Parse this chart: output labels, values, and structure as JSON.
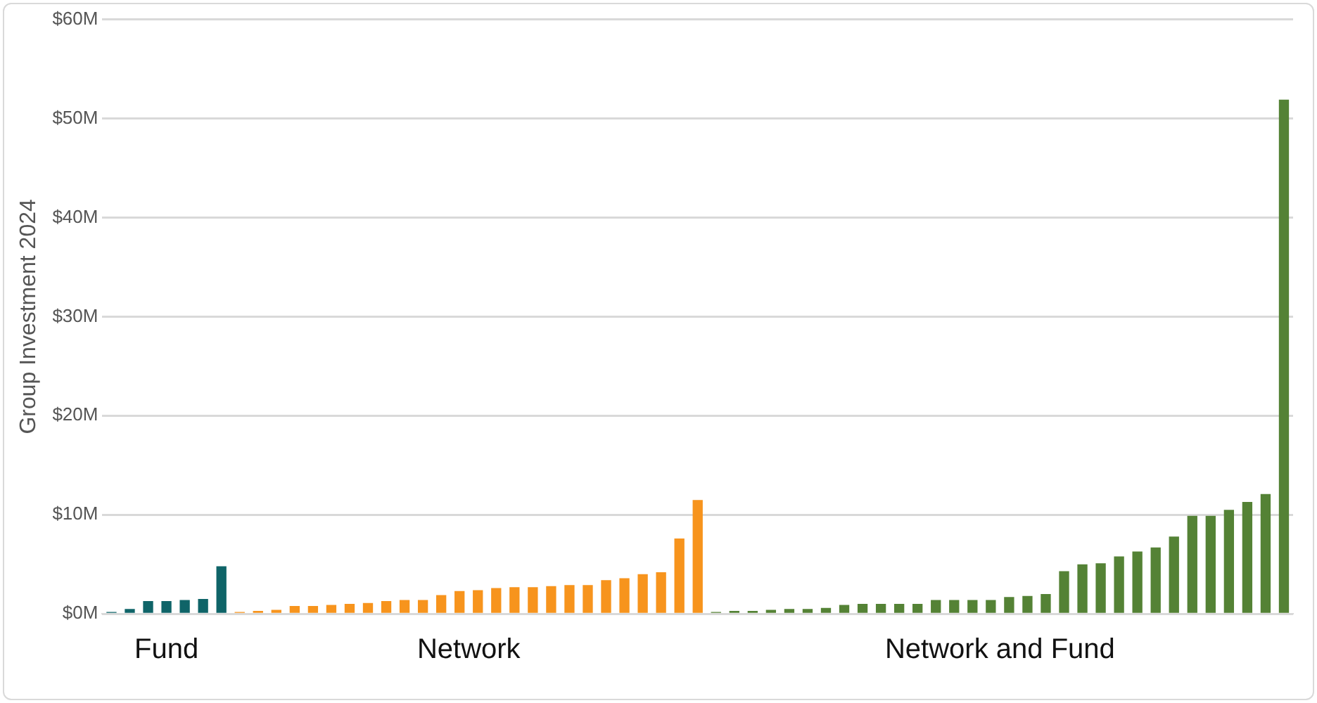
{
  "chart_data": {
    "type": "bar",
    "ylabel": "Group Investment 2024",
    "categories": [
      null,
      null,
      null,
      null,
      null,
      null,
      null,
      null,
      null,
      null,
      null,
      null,
      null,
      null,
      null,
      null,
      null,
      null,
      null,
      null,
      null,
      null,
      null,
      null,
      null,
      null,
      null,
      null,
      null,
      null,
      null,
      null,
      null,
      null,
      null,
      null,
      null,
      null,
      null,
      null,
      null,
      null,
      null,
      null,
      null,
      null,
      null,
      null,
      null,
      null,
      null,
      null,
      null,
      null,
      null,
      null,
      null,
      null,
      null,
      null,
      null,
      null,
      null,
      null,
      null
    ],
    "series": [
      {
        "name": "Fund",
        "color": "#0f6468",
        "values": [
          0.2,
          0.5,
          1.3,
          1.3,
          1.4,
          1.5,
          4.8,
          null,
          null,
          null,
          null,
          null,
          null,
          null,
          null,
          null,
          null,
          null,
          null,
          null,
          null,
          null,
          null,
          null,
          null,
          null,
          null,
          null,
          null,
          null,
          null,
          null,
          null,
          null,
          null,
          null,
          null,
          null,
          null,
          null,
          null,
          null,
          null,
          null,
          null,
          null,
          null,
          null,
          null,
          null,
          null,
          null,
          null,
          null,
          null,
          null,
          null,
          null,
          null,
          null,
          null,
          null,
          null,
          null,
          null
        ]
      },
      {
        "name": "Network",
        "color": "#f7941d",
        "values": [
          null,
          null,
          null,
          null,
          null,
          null,
          null,
          0.2,
          0.3,
          0.4,
          0.8,
          0.8,
          0.9,
          1.0,
          1.1,
          1.3,
          1.4,
          1.4,
          1.9,
          2.3,
          2.4,
          2.6,
          2.7,
          2.7,
          2.8,
          2.9,
          2.9,
          3.4,
          3.6,
          4.0,
          4.2,
          7.6,
          11.5,
          null,
          null,
          null,
          null,
          null,
          null,
          null,
          null,
          null,
          null,
          null,
          null,
          null,
          null,
          null,
          null,
          null,
          null,
          null,
          null,
          null,
          null,
          null,
          null,
          null,
          null,
          null,
          null,
          null,
          null,
          null,
          null
        ]
      },
      {
        "name": "Network and Fund",
        "color": "#548235",
        "values": [
          null,
          null,
          null,
          null,
          null,
          null,
          null,
          null,
          null,
          null,
          null,
          null,
          null,
          null,
          null,
          null,
          null,
          null,
          null,
          null,
          null,
          null,
          null,
          null,
          null,
          null,
          null,
          null,
          null,
          null,
          null,
          null,
          null,
          0.2,
          0.3,
          0.3,
          0.4,
          0.5,
          0.5,
          0.6,
          0.9,
          1.0,
          1.0,
          1.0,
          1.0,
          1.4,
          1.4,
          1.4,
          1.4,
          1.7,
          1.8,
          2.0,
          4.3,
          5.0,
          5.1,
          5.8,
          6.3,
          6.7,
          7.8,
          9.9,
          9.9,
          10.5,
          11.3,
          12.1,
          51.9
        ]
      }
    ],
    "ylim": [
      0,
      60
    ],
    "yticks": [
      {
        "value": 0,
        "label": "$0M"
      },
      {
        "value": 10,
        "label": "$10M"
      },
      {
        "value": 20,
        "label": "$20M"
      },
      {
        "value": 30,
        "label": "$30M"
      },
      {
        "value": 40,
        "label": "$40M"
      },
      {
        "value": 50,
        "label": "$50M"
      },
      {
        "value": 60,
        "label": "$60M"
      }
    ],
    "grid": "y",
    "legend": false
  }
}
